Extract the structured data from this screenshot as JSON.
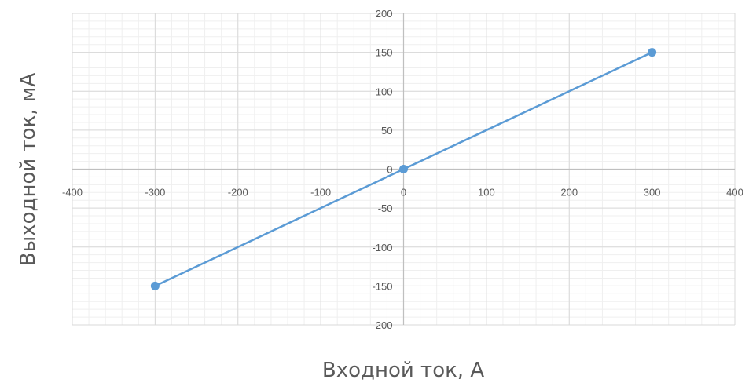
{
  "chart_data": {
    "type": "scatter",
    "title": "",
    "xlabel": "Входной ток, А",
    "ylabel": "Выходной ток, мА",
    "xlim": [
      -400,
      400
    ],
    "ylim": [
      -200,
      200
    ],
    "x_major_step": 100,
    "y_major_step": 50,
    "x_minor_step": 20,
    "y_minor_step": 10,
    "grid": true,
    "legend": "none",
    "x_tick_labels": [
      "-400",
      "-300",
      "-200",
      "-100",
      "0",
      "100",
      "200",
      "300",
      "400"
    ],
    "y_tick_labels": [
      "200",
      "150",
      "100",
      "50",
      "0",
      "-50",
      "-100",
      "-150",
      "-200"
    ],
    "series": [
      {
        "x": [
          -300,
          0,
          300
        ],
        "y": [
          -150,
          0,
          150
        ],
        "mode": "lines+markers",
        "color": "#5b9bd5"
      }
    ],
    "colors": {
      "major_grid": "#d9d9d9",
      "minor_grid": "#efefef",
      "axis": "#bfbfbf",
      "text": "#595959"
    }
  }
}
